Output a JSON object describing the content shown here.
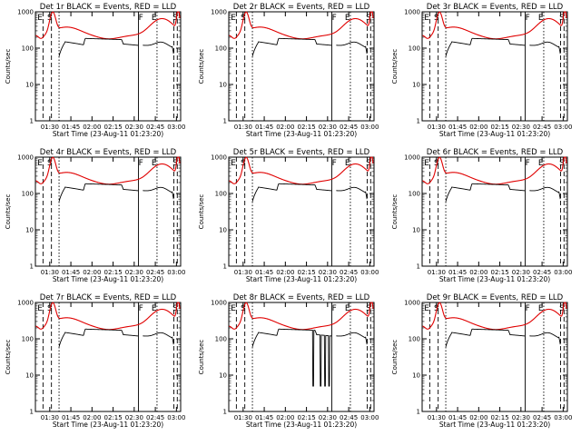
{
  "chart_data": [
    {
      "type": "line",
      "title": "Det 1r BLACK = Events, RED = LLD",
      "xlabel": "Start Time (23-Aug-11 01:23:20)",
      "ylabel": "Counts/sec",
      "ylog": true,
      "ylim": [
        1,
        1000
      ],
      "xlim": [
        1.33,
        3.05
      ],
      "yticks": [
        "1",
        "10",
        "100",
        "1000"
      ],
      "xticks": [
        "01:30",
        "01:45",
        "02:00",
        "02:15",
        "02:30",
        "02:45",
        "03:00"
      ],
      "markers": [
        "E",
        "S",
        "F",
        "E",
        "S"
      ],
      "gaps": []
    },
    {
      "type": "line",
      "title": "Det 2r BLACK = Events, RED = LLD",
      "xlabel": "Start Time (23-Aug-11 01:23:20)",
      "ylabel": "Counts/sec",
      "ylog": true,
      "ylim": [
        1,
        1000
      ],
      "xlim": [
        1.33,
        3.05
      ],
      "yticks": [
        "1",
        "10",
        "100",
        "1000"
      ],
      "xticks": [
        "01:30",
        "01:45",
        "02:00",
        "02:15",
        "02:30",
        "02:45",
        "03:00"
      ],
      "markers": [
        "E",
        "S",
        "F",
        "E",
        "S"
      ],
      "gaps": []
    },
    {
      "type": "line",
      "title": "Det 3r BLACK = Events, RED = LLD",
      "xlabel": "Start Time (23-Aug-11 01:23:20)",
      "ylabel": "Counts/sec",
      "ylog": true,
      "ylim": [
        1,
        1000
      ],
      "xlim": [
        1.33,
        3.05
      ],
      "yticks": [
        "1",
        "10",
        "100",
        "1000"
      ],
      "xticks": [
        "01:30",
        "01:45",
        "02:00",
        "02:15",
        "02:30",
        "02:45",
        "03:00"
      ],
      "markers": [
        "E",
        "S",
        "F",
        "E",
        "S"
      ],
      "gaps": []
    },
    {
      "type": "line",
      "title": "Det 4r BLACK = Events, RED = LLD",
      "xlabel": "Start Time (23-Aug-11 01:23:20)",
      "ylabel": "Counts/sec",
      "ylog": true,
      "ylim": [
        1,
        1000
      ],
      "xlim": [
        1.33,
        3.05
      ],
      "yticks": [
        "1",
        "10",
        "100",
        "1000"
      ],
      "xticks": [
        "01:30",
        "01:45",
        "02:00",
        "02:15",
        "02:30",
        "02:45",
        "03:00"
      ],
      "markers": [
        "E",
        "S",
        "F",
        "E",
        "S"
      ],
      "gaps": []
    },
    {
      "type": "line",
      "title": "Det 5r BLACK = Events, RED = LLD",
      "xlabel": "Start Time (23-Aug-11 01:23:20)",
      "ylabel": "Counts/sec",
      "ylog": true,
      "ylim": [
        1,
        1000
      ],
      "xlim": [
        1.33,
        3.05
      ],
      "yticks": [
        "1",
        "10",
        "100",
        "1000"
      ],
      "xticks": [
        "01:30",
        "01:45",
        "02:00",
        "02:15",
        "02:30",
        "02:45",
        "03:00"
      ],
      "markers": [
        "E",
        "S",
        "F",
        "E",
        "S"
      ],
      "gaps": []
    },
    {
      "type": "line",
      "title": "Det 6r BLACK = Events, RED = LLD",
      "xlabel": "Start Time (23-Aug-11 01:23:20)",
      "ylabel": "Counts/sec",
      "ylog": true,
      "ylim": [
        1,
        1000
      ],
      "xlim": [
        1.33,
        3.05
      ],
      "yticks": [
        "1",
        "10",
        "100",
        "1000"
      ],
      "xticks": [
        "01:30",
        "01:45",
        "02:00",
        "02:15",
        "02:30",
        "02:45",
        "03:00"
      ],
      "markers": [
        "E",
        "S",
        "F",
        "E",
        "S"
      ],
      "gaps": []
    },
    {
      "type": "line",
      "title": "Det 7r BLACK = Events, RED = LLD",
      "xlabel": "Start Time (23-Aug-11 01:23:20)",
      "ylabel": "Counts/sec",
      "ylog": true,
      "ylim": [
        1,
        1000
      ],
      "xlim": [
        1.33,
        3.05
      ],
      "yticks": [
        "1",
        "10",
        "100",
        "1000"
      ],
      "xticks": [
        "01:30",
        "01:45",
        "02:00",
        "02:15",
        "02:30",
        "02:45",
        "03:00"
      ],
      "markers": [
        "E",
        "S",
        "F",
        "E",
        "S"
      ],
      "gaps": []
    },
    {
      "type": "line",
      "title": "Det 8r BLACK = Events, RED = LLD",
      "xlabel": "Start Time (23-Aug-11 01:23:20)",
      "ylabel": "Counts/sec",
      "ylog": true,
      "ylim": [
        1,
        1000
      ],
      "xlim": [
        1.33,
        3.05
      ],
      "yticks": [
        "1",
        "10",
        "100",
        "1000"
      ],
      "xticks": [
        "01:30",
        "01:45",
        "02:00",
        "02:15",
        "02:30",
        "02:45",
        "03:00"
      ],
      "markers": [
        "E",
        "S",
        "F",
        "E",
        "S"
      ],
      "gaps": [
        2.33,
        2.42,
        2.47,
        2.52
      ]
    },
    {
      "type": "line",
      "title": "Det 9r BLACK = Events, RED = LLD",
      "xlabel": "Start Time (23-Aug-11 01:23:20)",
      "ylabel": "Counts/sec",
      "ylog": true,
      "ylim": [
        1,
        1000
      ],
      "xlim": [
        1.33,
        3.05
      ],
      "yticks": [
        "1",
        "10",
        "100",
        "1000"
      ],
      "xticks": [
        "01:30",
        "01:45",
        "02:00",
        "02:15",
        "02:30",
        "02:45",
        "03:00"
      ],
      "markers": [
        "E",
        "S",
        "F",
        "E",
        "S"
      ],
      "gaps": []
    }
  ],
  "colors": {
    "events": "#000000",
    "lld": "#e00000",
    "axes": "#000000"
  }
}
